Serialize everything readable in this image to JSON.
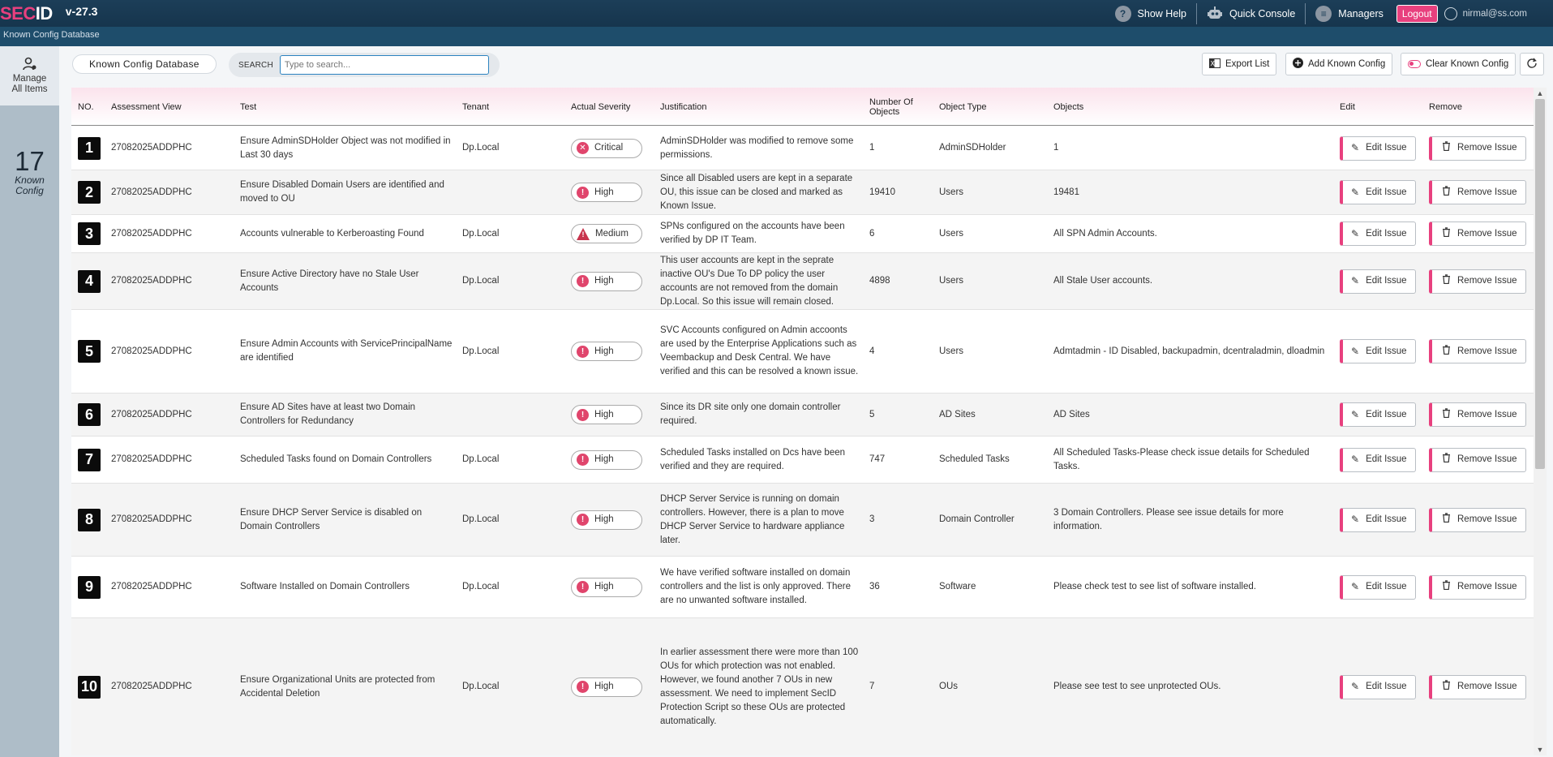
{
  "app": {
    "logo_sec": "SEC",
    "logo_id": "ID",
    "version": "v-27.3"
  },
  "topnav": {
    "help": "Show Help",
    "console": "Quick Console",
    "managers": "Managers",
    "logout": "Logout",
    "user": "nirmal@ss.com"
  },
  "subbar": {
    "breadcrumb": "Known Config Database"
  },
  "sidebar": {
    "manage_line1": "Manage",
    "manage_line2": "All Items",
    "count": "17",
    "count_label_1": "Known",
    "count_label_2": "Config"
  },
  "toolbar": {
    "db_label": "Known Config Database",
    "search_label": "SEARCH",
    "search_placeholder": "Type to search...",
    "search_value": "",
    "export": "Export List",
    "add": "Add Known Config",
    "clear": "Clear Known Config"
  },
  "table": {
    "headers": {
      "no": "NO.",
      "view": "Assessment View",
      "test": "Test",
      "tenant": "Tenant",
      "severity": "Actual Severity",
      "justification": "Justification",
      "num_objects_1": "Number Of",
      "num_objects_2": "Objects",
      "object_type": "Object Type",
      "objects": "Objects",
      "edit": "Edit",
      "remove": "Remove"
    },
    "edit_label": "Edit Issue",
    "remove_label": "Remove Issue",
    "rows": [
      {
        "no": "1",
        "view": "27082025ADDPHC",
        "test": "Ensure AdminSDHolder Object was not modified in Last 30 days",
        "tenant": "Dp.Local",
        "severity": "Critical",
        "justification": "AdminSDHolder was modified to remove some permissions.",
        "num": "1",
        "type": "AdminSDHolder",
        "objects": "1"
      },
      {
        "no": "2",
        "view": "27082025ADDPHC",
        "test": "Ensure Disabled Domain Users are identified and moved to OU",
        "tenant": "",
        "severity": "High",
        "justification": "Since all Disabled users are kept in a separate OU, this issue can be closed and marked as Known Issue.",
        "num": "19410",
        "type": "Users",
        "objects": "19481"
      },
      {
        "no": "3",
        "view": "27082025ADDPHC",
        "test": "Accounts vulnerable to Kerberoasting Found",
        "tenant": "Dp.Local",
        "severity": "Medium",
        "justification": "SPNs configured on the accounts have been verified by DP IT Team.",
        "num": "6",
        "type": "Users",
        "objects": "All SPN Admin Accounts."
      },
      {
        "no": "4",
        "view": "27082025ADDPHC",
        "test": "Ensure Active Directory have no Stale User Accounts",
        "tenant": "Dp.Local",
        "severity": "High",
        "justification": "This user accounts are kept in the seprate inactive OU's Due To DP policy the user accounts are not removed from the domain Dp.Local. So this issue will remain closed.",
        "num": "4898",
        "type": "Users",
        "objects": "All Stale User accounts."
      },
      {
        "no": "5",
        "view": "27082025ADDPHC",
        "test": "Ensure Admin Accounts with ServicePrincipalName are identified",
        "tenant": "Dp.Local",
        "severity": "High",
        "justification": "SVC Accounts configured on Admin accoonts are used by the Enterprise Applications such as Veembackup and Desk Central. We have verified and this can be resolved a known issue.",
        "num": "4",
        "type": "Users",
        "objects": "Admtadmin - ID Disabled, backupadmin, dcentraladmin, dloadmin"
      },
      {
        "no": "6",
        "view": "27082025ADDPHC",
        "test": "Ensure AD Sites have at least two Domain Controllers for Redundancy",
        "tenant": "",
        "severity": "High",
        "justification": "Since its DR site only one domain controller required.",
        "num": "5",
        "type": "AD Sites",
        "objects": "AD Sites"
      },
      {
        "no": "7",
        "view": "27082025ADDPHC",
        "test": "Scheduled Tasks found on Domain Controllers",
        "tenant": "Dp.Local",
        "severity": "High",
        "justification": "Scheduled Tasks installed on Dcs have been verified and they are required.",
        "num": "747",
        "type": "Scheduled Tasks",
        "objects": "All Scheduled Tasks-Please check issue details for Scheduled Tasks."
      },
      {
        "no": "8",
        "view": "27082025ADDPHC",
        "test": "Ensure DHCP Server Service is disabled on Domain Controllers",
        "tenant": "Dp.Local",
        "severity": "High",
        "justification": "DHCP Server Service is running on domain controllers. However, there is a plan to move DHCP Server Service to hardware appliance later.",
        "num": "3",
        "type": "Domain Controller",
        "objects": "3 Domain Controllers. Please see issue details for more information."
      },
      {
        "no": "9",
        "view": "27082025ADDPHC",
        "test": "Software Installed on Domain Controllers",
        "tenant": "Dp.Local",
        "severity": "High",
        "justification": "We have verified software installed on domain controllers and the list is only approved. There are no unwanted software installed.",
        "num": "36",
        "type": "Software",
        "objects": "Please check test to see list of software installed."
      },
      {
        "no": "10",
        "view": "27082025ADDPHC",
        "test": "Ensure Organizational Units are protected from Accidental Deletion",
        "tenant": "Dp.Local",
        "severity": "High",
        "justification": "In earlier assessment there were more than 100 OUs for which protection was not enabled. However, we found another 7 OUs in new assessment. We need to implement SecID Protection Script so these OUs are protected automatically.",
        "num": "7",
        "type": "OUs",
        "objects": "Please see test to see unprotected OUs."
      }
    ]
  },
  "colors": {
    "accent": "#e8407e",
    "topbar": "#1c3e58",
    "subbar": "#1e4d6b",
    "critical": "#e0456c",
    "medium": "#c8344d"
  },
  "icons": {
    "help": "question-circle-icon",
    "console": "robot-icon",
    "managers": "list-circle-icon",
    "user": "user-circle-icon",
    "manage": "user-gear-icon",
    "export": "excel-icon",
    "add": "plus-circle-icon",
    "clear": "toggle-icon",
    "refresh": "refresh-icon",
    "edit": "pencil-icon",
    "remove": "trash-icon"
  }
}
